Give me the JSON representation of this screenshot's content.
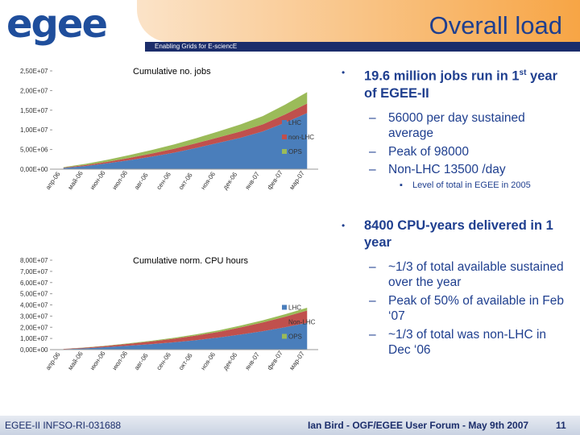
{
  "header": {
    "logo": "egee",
    "title": "Overall load",
    "subtitle": "Enabling Grids for E-sciencE"
  },
  "chart_data": [
    {
      "type": "area",
      "stacked": true,
      "title": "Cumulative no. jobs",
      "categories": [
        "апр-06",
        "май-06",
        "июн-06",
        "июл-06",
        "авг-06",
        "сен-06",
        "окт-06",
        "ноя-06",
        "дек-06",
        "янв-07",
        "фев-07",
        "мар-07"
      ],
      "series": [
        {
          "name": "LHC",
          "color": "#4a7ebb",
          "values": [
            300000,
            800000,
            1500000,
            2300000,
            3200000,
            4200000,
            5400000,
            6700000,
            8000000,
            9600000,
            11800000,
            14300000
          ]
        },
        {
          "name": "non-LHC",
          "color": "#c0504d",
          "values": [
            100000,
            250000,
            400000,
            600000,
            800000,
            1000000,
            1200000,
            1400000,
            1600000,
            1800000,
            2100000,
            2400000
          ]
        },
        {
          "name": "OPS",
          "color": "#9bbb59",
          "values": [
            100000,
            300000,
            500000,
            700000,
            900000,
            1100000,
            1300000,
            1500000,
            1800000,
            2100000,
            2500000,
            2900000
          ]
        }
      ],
      "ylim": [
        0,
        25000000
      ],
      "yticks": [
        {
          "value": 0,
          "label": "0,00E+00"
        },
        {
          "value": 5000000,
          "label": "5,00E+06"
        },
        {
          "value": 10000000,
          "label": "1,00E+07"
        },
        {
          "value": 15000000,
          "label": "1,50E+07"
        },
        {
          "value": 20000000,
          "label": "2,00E+07"
        },
        {
          "value": 25000000,
          "label": "2,50E+07"
        }
      ],
      "legend": "right"
    },
    {
      "type": "area",
      "stacked": true,
      "title": "Cumulative norm. CPU hours",
      "categories": [
        "апр-06",
        "май-06",
        "июн-06",
        "июл-06",
        "авг-06",
        "сен-06",
        "окт-06",
        "ноя-06",
        "дек-06",
        "янв-07",
        "фев-07",
        "мар-07"
      ],
      "series": [
        {
          "name": "LHC",
          "color": "#4a7ebb",
          "values": [
            400000,
            1200000,
            2300000,
            3600000,
            5000000,
            6600000,
            8500000,
            10800000,
            13500000,
            16500000,
            20000000,
            24000000
          ]
        },
        {
          "name": "Non-LHC",
          "color": "#c0504d",
          "values": [
            200000,
            600000,
            1100000,
            1700000,
            2400000,
            3200000,
            4100000,
            5100000,
            6400000,
            7800000,
            9400000,
            11000000
          ]
        },
        {
          "name": "OPS",
          "color": "#9bbb59",
          "values": [
            50000,
            150000,
            300000,
            450000,
            650000,
            850000,
            1100000,
            1350000,
            1650000,
            1950000,
            2200000,
            2500000
          ]
        }
      ],
      "ylim": [
        0,
        80000000
      ],
      "yticks": [
        {
          "value": 0,
          "label": "0,00E+00"
        },
        {
          "value": 10000000,
          "label": "1,00E+07"
        },
        {
          "value": 20000000,
          "label": "2,00E+07"
        },
        {
          "value": 30000000,
          "label": "3,00E+07"
        },
        {
          "value": 40000000,
          "label": "4,00E+07"
        },
        {
          "value": 50000000,
          "label": "5,00E+07"
        },
        {
          "value": 60000000,
          "label": "6,00E+07"
        },
        {
          "value": 70000000,
          "label": "7,00E+07"
        },
        {
          "value": 80000000,
          "label": "8,00E+07"
        }
      ],
      "legend": "right"
    }
  ],
  "bullets": [
    {
      "pre": "19.6 million jobs run in 1",
      "sup": "st",
      "post": " year of EGEE-II",
      "items": [
        "56000 per day sustained average",
        "Peak of 98000",
        "Non-LHC 13500 /day"
      ],
      "subitem": "Level of total in EGEE in 2005"
    },
    {
      "text": "8400 CPU-years delivered in 1 year",
      "items": [
        "~1/3 of total available sustained over the year",
        "Peak of 50% of available in Feb ‘07",
        "~1/3 of total was non-LHC in Dec ‘06"
      ]
    }
  ],
  "footer": {
    "left": "EGEE-II INFSO-RI-031688",
    "center": "Ian Bird - OGF/EGEE User Forum - May 9th 2007",
    "page": "11"
  }
}
